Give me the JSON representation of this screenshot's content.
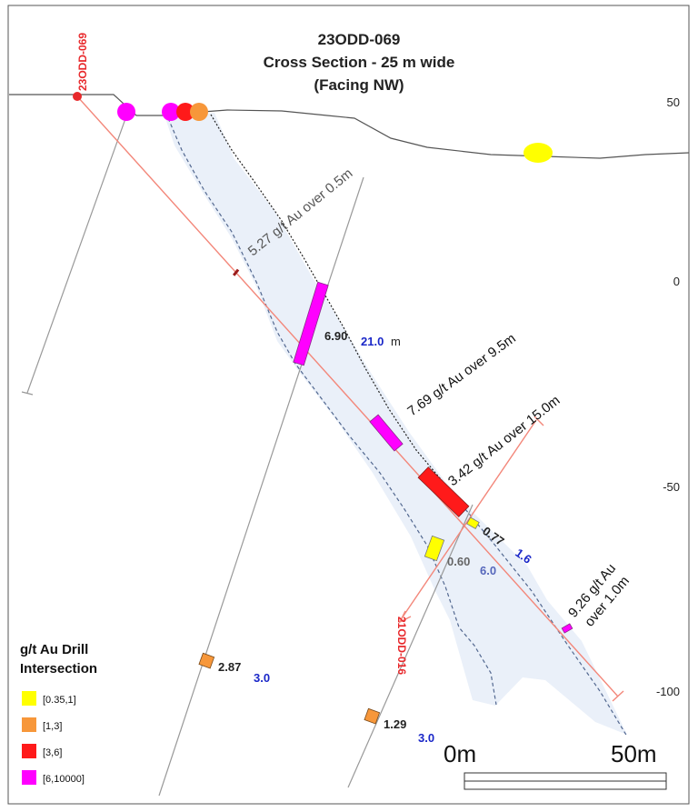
{
  "title": {
    "line1": "23ODD-069",
    "line2": "Cross Section - 25 m wide",
    "line3": "(Facing NW)"
  },
  "elevation_axis": {
    "ticks": [
      "50",
      "0",
      "-50",
      "-100"
    ]
  },
  "drill_holes": {
    "hole_a": "23ODD-069",
    "hole_b": "21ODD-016"
  },
  "annotations": {
    "a1": "5.27 g/t Au over 0.5m",
    "a2": "7.69 g/t Au over 9.5m",
    "a3": "3.42 g/t Au over 15.0m",
    "a4_line1": "9.26 g/t Au",
    "a4_line2": "over 1.0m"
  },
  "intercepts": [
    {
      "grade": "6.90",
      "width": "21.0",
      "unit": "m"
    },
    {
      "grade": "0.77",
      "width": "1.6"
    },
    {
      "grade": "0.60",
      "width": "6.0"
    },
    {
      "grade": "2.87",
      "width": "3.0"
    },
    {
      "grade": "1.29",
      "width": "3.0"
    }
  ],
  "legend": {
    "title_line1": "g/t Au Drill",
    "title_line2": "Intersection",
    "items": [
      {
        "label": "[0.35,1]",
        "color": "#ffff00"
      },
      {
        "label": "[1,3]",
        "color": "#f7973a"
      },
      {
        "label": "[3,6]",
        "color": "#ff1a1a"
      },
      {
        "label": "[6,10000]",
        "color": "#ff00ff"
      }
    ]
  },
  "scale_bar": {
    "start": "0m",
    "end": "50m"
  },
  "colors": {
    "magenta": "#ff00ff",
    "red": "#ff1a1a",
    "orange": "#f7973a",
    "yellow": "#ffff00",
    "hole_line": "#f3877a",
    "hole_label": "#e8282b",
    "zone_fill": "#eaf0f9",
    "blue_value": "#1a27c8"
  }
}
